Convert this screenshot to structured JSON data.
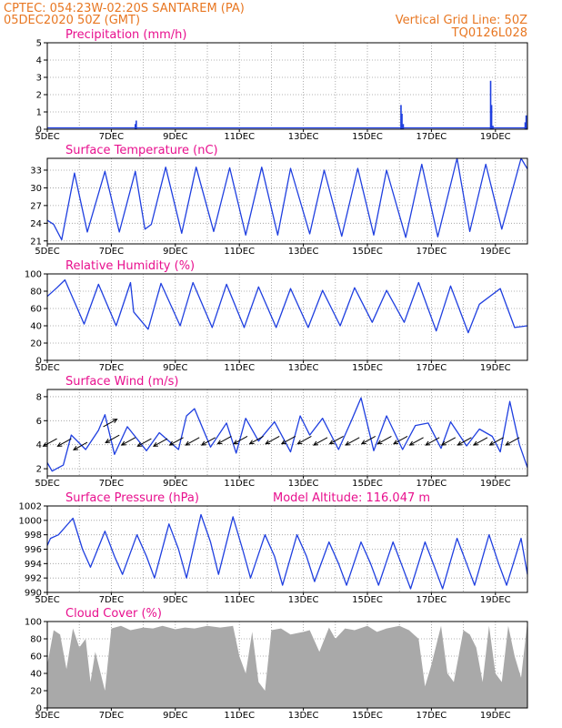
{
  "header": {
    "line1": "CPTEC:   054:23W-02:20S   SANTAREM (PA)",
    "line2": "05DEC2020 50Z (GMT)",
    "grid_note": "Vertical Grid Line: 50Z",
    "code": "TQ0126L028"
  },
  "colors": {
    "header": "#e87722",
    "title": "#e8108e",
    "line": "#1f3fe0",
    "cloud": "#a9a9a9",
    "arrow": "#000000",
    "grid": "#9a9a9a"
  },
  "chart_data": [
    {
      "type": "bar",
      "title": "Precipitation (mm/h)",
      "x_range": [
        5,
        20
      ],
      "ylim": [
        0,
        5
      ],
      "yticks": [
        "0",
        "1",
        "2",
        "3",
        "4",
        "5"
      ],
      "xticks": [
        "5DEC",
        "7DEC",
        "9DEC",
        "11DEC",
        "13DEC",
        "15DEC",
        "17DEC",
        "19DEC"
      ],
      "x": [
        7.75,
        7.78,
        16.05,
        16.08,
        16.12,
        18.85,
        18.88,
        18.92,
        19.93,
        19.96
      ],
      "values": [
        0.3,
        0.5,
        1.4,
        0.9,
        0.3,
        2.8,
        1.4,
        0.2,
        0.4,
        0.8
      ]
    },
    {
      "type": "line",
      "title": "Surface Temperature (nC)",
      "x_range": [
        5,
        20
      ],
      "ylim": [
        20.5,
        35
      ],
      "yticks": [
        "21",
        "24",
        "27",
        "30",
        "33"
      ],
      "xticks": [
        "5DEC",
        "7DEC",
        "9DEC",
        "11DEC",
        "13DEC",
        "15DEC",
        "17DEC",
        "19DEC"
      ],
      "x": [
        5.0,
        5.2,
        5.45,
        5.85,
        6.25,
        6.8,
        7.25,
        7.75,
        8.05,
        8.25,
        8.7,
        9.2,
        9.65,
        10.2,
        10.7,
        11.2,
        11.7,
        12.2,
        12.6,
        13.2,
        13.65,
        14.2,
        14.7,
        15.2,
        15.6,
        16.2,
        16.7,
        17.2,
        17.8,
        18.2,
        18.7,
        19.2,
        19.8,
        20.0
      ],
      "values": [
        24.5,
        23.8,
        21.2,
        32.5,
        22.5,
        32.8,
        22.5,
        32.8,
        23.0,
        23.8,
        33.5,
        22.3,
        33.5,
        22.6,
        33.4,
        22.0,
        33.5,
        22.0,
        33.3,
        22.2,
        33.0,
        21.8,
        33.3,
        22.0,
        33.0,
        21.6,
        34.0,
        21.7,
        35.0,
        22.6,
        34.0,
        23.0,
        35.0,
        33.2
      ]
    },
    {
      "type": "line",
      "title": "Relative Humidity (%)",
      "x_range": [
        5,
        20
      ],
      "ylim": [
        0,
        100
      ],
      "yticks": [
        "0",
        "20",
        "40",
        "60",
        "80",
        "100"
      ],
      "xticks": [
        "5DEC",
        "7DEC",
        "9DEC",
        "11DEC",
        "13DEC",
        "15DEC",
        "17DEC",
        "19DEC"
      ],
      "x": [
        5.0,
        5.3,
        5.55,
        6.15,
        6.6,
        7.15,
        7.6,
        7.7,
        8.15,
        8.55,
        9.15,
        9.55,
        10.15,
        10.6,
        11.15,
        11.6,
        12.15,
        12.6,
        13.15,
        13.6,
        14.15,
        14.6,
        15.15,
        15.6,
        16.15,
        16.6,
        17.15,
        17.6,
        18.15,
        18.5,
        19.15,
        19.6,
        20.0
      ],
      "values": [
        74,
        84,
        93,
        42,
        88,
        40,
        90,
        56,
        36,
        89,
        40,
        90,
        38,
        88,
        38,
        85,
        38,
        83,
        38,
        81,
        40,
        84,
        44,
        81,
        44,
        90,
        34,
        86,
        32,
        65,
        83,
        38,
        40
      ]
    },
    {
      "type": "line",
      "title": "Surface Wind (m/s)",
      "x_range": [
        5,
        20
      ],
      "ylim": [
        1.4,
        8.6
      ],
      "yticks": [
        "2",
        "4",
        "6",
        "8"
      ],
      "xticks": [
        "5DEC",
        "7DEC",
        "9DEC",
        "11DEC",
        "13DEC",
        "15DEC",
        "17DEC",
        "19DEC"
      ],
      "x": [
        5.0,
        5.15,
        5.5,
        5.75,
        6.2,
        6.6,
        6.8,
        7.1,
        7.5,
        8.1,
        8.5,
        9.1,
        9.35,
        9.6,
        10.1,
        10.6,
        10.9,
        11.2,
        11.6,
        12.1,
        12.6,
        12.9,
        13.2,
        13.6,
        14.1,
        14.5,
        14.8,
        15.2,
        15.6,
        16.1,
        16.5,
        16.9,
        17.3,
        17.6,
        18.1,
        18.5,
        18.9,
        19.15,
        19.45,
        19.75,
        20.0
      ],
      "values": [
        2.5,
        1.8,
        2.3,
        4.8,
        3.6,
        5.2,
        6.5,
        3.2,
        5.5,
        3.5,
        5.0,
        3.6,
        6.4,
        7.0,
        3.8,
        5.8,
        3.3,
        6.2,
        4.3,
        5.9,
        3.4,
        6.4,
        4.8,
        6.2,
        3.6,
        6.0,
        7.9,
        3.5,
        6.4,
        3.6,
        5.6,
        5.8,
        3.7,
        5.9,
        3.9,
        5.3,
        4.7,
        3.4,
        7.6,
        4.0,
        2.1
      ],
      "arrow_x": [
        5.3,
        5.75,
        6.25,
        6.75,
        7.25,
        7.75,
        8.25,
        8.75,
        9.25,
        9.75,
        10.25,
        10.75,
        11.25,
        11.75,
        12.25,
        12.75,
        13.25,
        13.75,
        14.25,
        14.75,
        15.25,
        15.75,
        16.25,
        16.75,
        17.25,
        17.75,
        18.25,
        18.75,
        19.25,
        19.75
      ],
      "arrow_y": [
        4.5,
        4.5,
        4.2,
        5.5,
        4.8,
        4.6,
        4.5,
        4.5,
        4.6,
        4.6,
        4.6,
        4.7,
        4.7,
        4.7,
        4.7,
        4.7,
        4.7,
        4.6,
        4.7,
        4.6,
        4.7,
        4.7,
        4.7,
        4.6,
        4.6,
        4.6,
        4.6,
        4.6,
        4.6,
        4.6
      ],
      "arrow_dir": [
        -1,
        -1,
        -1,
        1,
        -1,
        -1,
        -1,
        -1,
        -1,
        -1,
        -1,
        -1,
        -1,
        -1,
        -1,
        -1,
        -1,
        -1,
        -1,
        -1,
        -1,
        -1,
        -1,
        -1,
        -1,
        -1,
        -1,
        -1,
        -1,
        -1
      ]
    },
    {
      "type": "line",
      "title": "Surface Pressure (hPa)",
      "subtitle": "Model Altitude: 116.047 m",
      "x_range": [
        5,
        20
      ],
      "ylim": [
        990,
        1002
      ],
      "yticks": [
        "990",
        "992",
        "994",
        "996",
        "998",
        "1000",
        "1002"
      ],
      "xticks": [
        "5DEC",
        "7DEC",
        "9DEC",
        "11DEC",
        "13DEC",
        "15DEC",
        "17DEC",
        "19DEC"
      ],
      "x": [
        5.0,
        5.1,
        5.35,
        5.8,
        6.1,
        6.35,
        6.8,
        7.1,
        7.35,
        7.8,
        8.1,
        8.35,
        8.8,
        9.1,
        9.35,
        9.8,
        10.1,
        10.35,
        10.8,
        11.1,
        11.35,
        11.8,
        12.1,
        12.35,
        12.8,
        13.1,
        13.35,
        13.8,
        14.1,
        14.35,
        14.8,
        15.1,
        15.35,
        15.8,
        16.1,
        16.35,
        16.8,
        17.1,
        17.35,
        17.8,
        18.1,
        18.35,
        18.8,
        19.1,
        19.35,
        19.8,
        20.0
      ],
      "values": [
        996.5,
        997.5,
        998.0,
        1000.3,
        996.0,
        993.5,
        998.5,
        995.0,
        992.5,
        998.0,
        995.0,
        992.0,
        999.5,
        996.0,
        992.0,
        1000.8,
        997.0,
        992.5,
        1000.5,
        996.0,
        992.0,
        998.0,
        995.0,
        991.0,
        998.0,
        995.0,
        991.5,
        997.0,
        994.0,
        991.0,
        997.0,
        994.0,
        991.0,
        997.0,
        993.5,
        990.5,
        997.0,
        993.5,
        990.5,
        997.5,
        994.0,
        991.0,
        998.0,
        994.0,
        991.0,
        997.5,
        992.5
      ]
    },
    {
      "type": "area",
      "title": "Cloud Cover (%)",
      "x_range": [
        5,
        20
      ],
      "ylim": [
        0,
        100
      ],
      "yticks": [
        "0",
        "20",
        "40",
        "60",
        "80",
        "100"
      ],
      "xticks": [
        "5DEC",
        "7DEC",
        "9DEC",
        "11DEC",
        "13DEC",
        "15DEC",
        "17DEC",
        "19DEC"
      ],
      "x": [
        5.0,
        5.2,
        5.4,
        5.6,
        5.8,
        6.0,
        6.2,
        6.35,
        6.5,
        6.8,
        7.0,
        7.3,
        7.6,
        8.0,
        8.3,
        8.6,
        9.0,
        9.3,
        9.6,
        10.0,
        10.4,
        10.8,
        11.0,
        11.2,
        11.4,
        11.6,
        11.8,
        12.0,
        12.3,
        12.6,
        13.0,
        13.2,
        13.5,
        13.8,
        14.0,
        14.3,
        14.6,
        15.0,
        15.3,
        15.6,
        16.0,
        16.3,
        16.6,
        16.8,
        17.0,
        17.3,
        17.5,
        17.7,
        18.0,
        18.2,
        18.4,
        18.6,
        18.8,
        19.0,
        19.2,
        19.4,
        19.6,
        19.8,
        20.0
      ],
      "values": [
        50,
        90,
        85,
        45,
        92,
        70,
        80,
        30,
        65,
        20,
        92,
        95,
        90,
        93,
        92,
        95,
        91,
        93,
        92,
        95,
        93,
        95,
        60,
        40,
        88,
        30,
        20,
        90,
        92,
        85,
        88,
        90,
        65,
        93,
        80,
        92,
        90,
        95,
        88,
        92,
        95,
        90,
        80,
        25,
        50,
        95,
        40,
        30,
        90,
        85,
        70,
        30,
        95,
        40,
        30,
        95,
        60,
        35,
        100
      ]
    }
  ]
}
